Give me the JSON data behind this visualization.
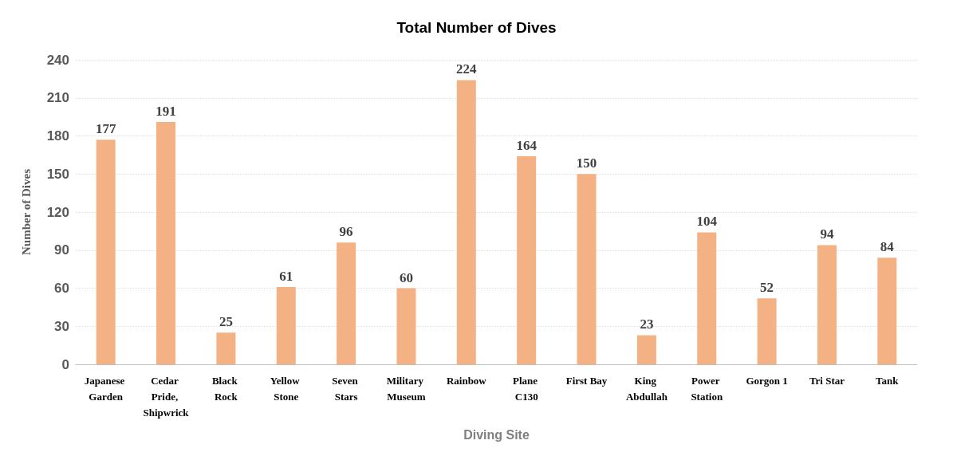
{
  "chart_data": {
    "type": "bar",
    "title": "Total Number of Dives",
    "xlabel": "Diving Site",
    "ylabel": "Number of Dives",
    "categories": [
      "Japanese Garden",
      "Cedar Pride, Shipwrick",
      "Black Rock",
      "Yellow Stone",
      "Seven Stars",
      "Military Museum",
      "Rainbow",
      "Plane C130",
      "First Bay",
      "King Abdullah",
      "Power Station",
      "Gorgon 1",
      "Tri Star",
      "Tank"
    ],
    "values": [
      177,
      191,
      25,
      61,
      96,
      60,
      224,
      164,
      150,
      23,
      104,
      52,
      94,
      84
    ],
    "color": "#f4b183",
    "ylim": [
      0,
      240
    ],
    "yticks": [
      0,
      30,
      60,
      90,
      120,
      150,
      180,
      210,
      240
    ],
    "grid": "y",
    "data_labels": true
  }
}
